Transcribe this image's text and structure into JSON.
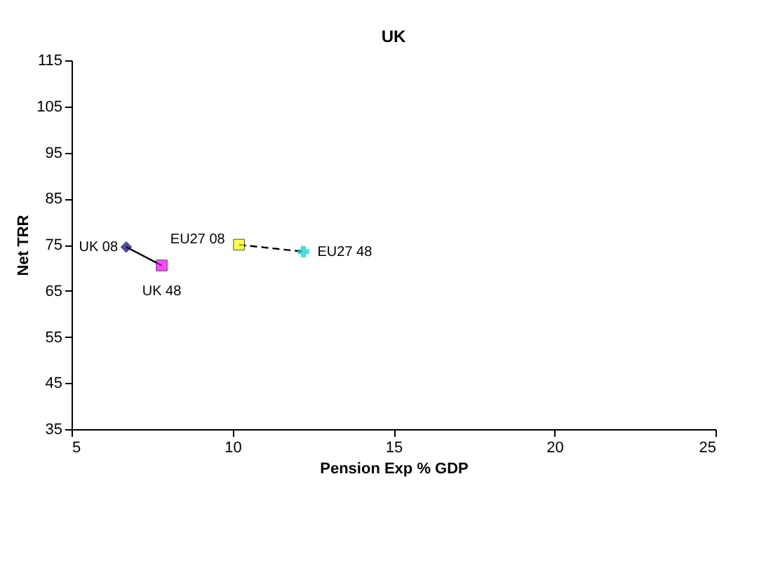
{
  "chart_data": {
    "type": "scatter",
    "title": "UK",
    "xlabel": "Pension Exp % GDP",
    "ylabel": "Net TRR",
    "xlim": [
      5,
      25
    ],
    "xticks": [
      5,
      10,
      15,
      20,
      25
    ],
    "ylim": [
      35,
      115
    ],
    "yticks": [
      35,
      45,
      55,
      65,
      75,
      85,
      95,
      105,
      115
    ],
    "grid": false,
    "series": [
      {
        "type": "line",
        "x": [
          6.7,
          7.8
        ],
        "values": [
          74.5,
          70.5
        ],
        "color": "#000000",
        "line_style": "solid",
        "marker": "none"
      },
      {
        "type": "line",
        "x": [
          10.2,
          12.2
        ],
        "values": [
          75,
          73.5
        ],
        "color": "#000000",
        "line_style": "dashed",
        "marker": "none"
      },
      {
        "name": "UK 08",
        "x": [
          6.7
        ],
        "values": [
          74.5
        ],
        "color": "#000080",
        "marker": "diamond"
      },
      {
        "name": "UK 48",
        "x": [
          7.8
        ],
        "values": [
          70.5
        ],
        "color": "#ff00ff",
        "marker": "square"
      },
      {
        "name": "EU27 08",
        "x": [
          10.2
        ],
        "values": [
          75
        ],
        "color": "#ffff00",
        "marker": "square"
      },
      {
        "name": "EU27 48",
        "x": [
          12.2
        ],
        "values": [
          73.5
        ],
        "color": "#00cccc",
        "marker": "cross"
      }
    ]
  }
}
